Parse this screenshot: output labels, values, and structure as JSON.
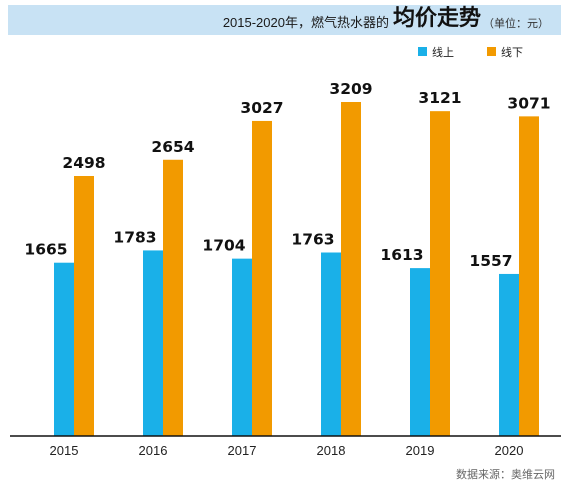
{
  "chart_data": {
    "type": "bar",
    "title_prefix": "2015-2020年，燃气热水器的",
    "title": "均价走势",
    "unit": "（单位：元）",
    "categories": [
      "2015",
      "2016",
      "2017",
      "2018",
      "2019",
      "2020"
    ],
    "series": [
      {
        "name": "线上",
        "color": "#1ab0e8",
        "values": [
          1665,
          1783,
          1704,
          1763,
          1613,
          1557
        ]
      },
      {
        "name": "线下",
        "color": "#f29a00",
        "values": [
          2498,
          2654,
          3027,
          3209,
          3121,
          3071
        ]
      }
    ],
    "value_labels": [
      [
        "1665",
        "1783",
        "1704",
        "1763",
        "1613",
        "1557"
      ],
      [
        "2498",
        "2654",
        "3027",
        "3209",
        "3121",
        "3071"
      ]
    ],
    "ylim": [
      0,
      3209
    ],
    "grid": false,
    "legend_position": "top-right",
    "source": "数据来源：奥维云网"
  }
}
